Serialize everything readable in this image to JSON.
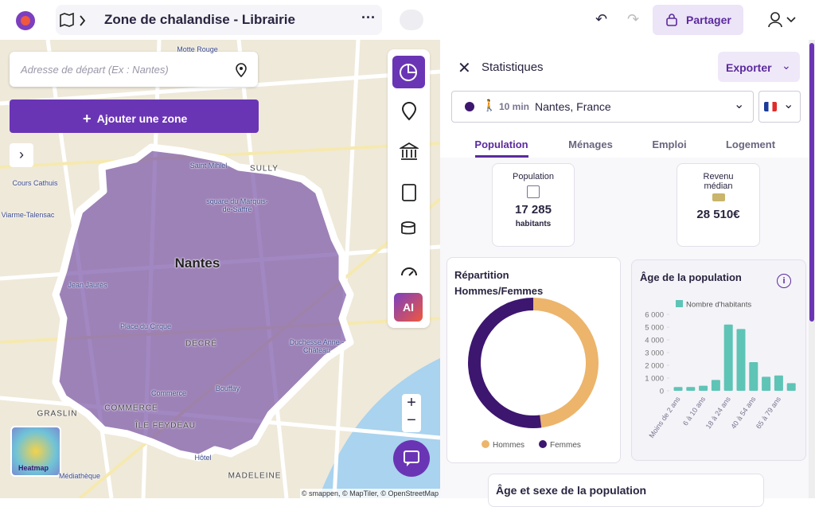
{
  "header": {
    "title": "Zone de chalandise - Librairie",
    "share": "Partager"
  },
  "map": {
    "search_placeholder": "Adresse de départ (Ex : Nantes)",
    "add_zone": "Ajouter une zone",
    "labels": [
      "Motte Rouge",
      "Saint Mihiel",
      "SULLY",
      "square du Marquis-de-Saffré",
      "Nantes",
      "Cours Cathuis",
      "Viarme-Talensac",
      "Jean Jaurès",
      "Place du Cirque",
      "DECRÉ",
      "Duchesse Anne - Château",
      "Commerce",
      "Bouffay",
      "GRASLIN",
      "COMMERCE",
      "ÎLE FEYDEAU",
      "Hôtel",
      "Médiathèque",
      "MADELEINE"
    ],
    "heatmap": "Heatmap",
    "ai": "AI",
    "attribution": "© smappen, © MapTiler, © OpenStreetMap"
  },
  "panel": {
    "title": "Statistiques",
    "export": "Exporter",
    "zone": {
      "duration": "10 min",
      "place": "Nantes, France"
    },
    "tabs": [
      "Population",
      "Ménages",
      "Emploi",
      "Logement"
    ],
    "cards": [
      {
        "label": "Population",
        "value": "17 285",
        "unit": "habitants"
      },
      {
        "label": "Revenu médian",
        "value": "28 510€"
      }
    ],
    "gender_chart": {
      "type": "pie",
      "title": "Répartition Hommes/Femmes",
      "categories": [
        "Hommes",
        "Femmes"
      ],
      "values": [
        48,
        52
      ],
      "colors": [
        "#ecb56b",
        "#3d1670"
      ]
    },
    "age_chart": {
      "type": "bar",
      "title": "Âge de la population",
      "series": [
        {
          "name": "Nombre d'habitants",
          "color": "#5ec4b6",
          "values": [
            300,
            300,
            400,
            850,
            5200,
            4850,
            2250,
            1100,
            1200,
            600
          ]
        }
      ],
      "categories": [
        "Moins de 2 ans",
        null,
        "6 à 10 ans",
        null,
        "18 à 24 ans",
        null,
        "40 à 54 ans",
        null,
        "65 à 79 ans",
        null
      ],
      "ylim": [
        0,
        6000
      ],
      "yticks": [
        0,
        {
          "value": 1000,
          "label": "1 000"
        },
        {
          "value": 2000,
          "label": "2 000"
        },
        {
          "value": 3000,
          "label": "3 000"
        },
        {
          "value": 4000,
          "label": "4 000"
        },
        {
          "value": 5000,
          "label": "5 000"
        },
        {
          "value": 6000,
          "label": "6 000"
        }
      ]
    },
    "next_section": "Âge et sexe de la population"
  }
}
